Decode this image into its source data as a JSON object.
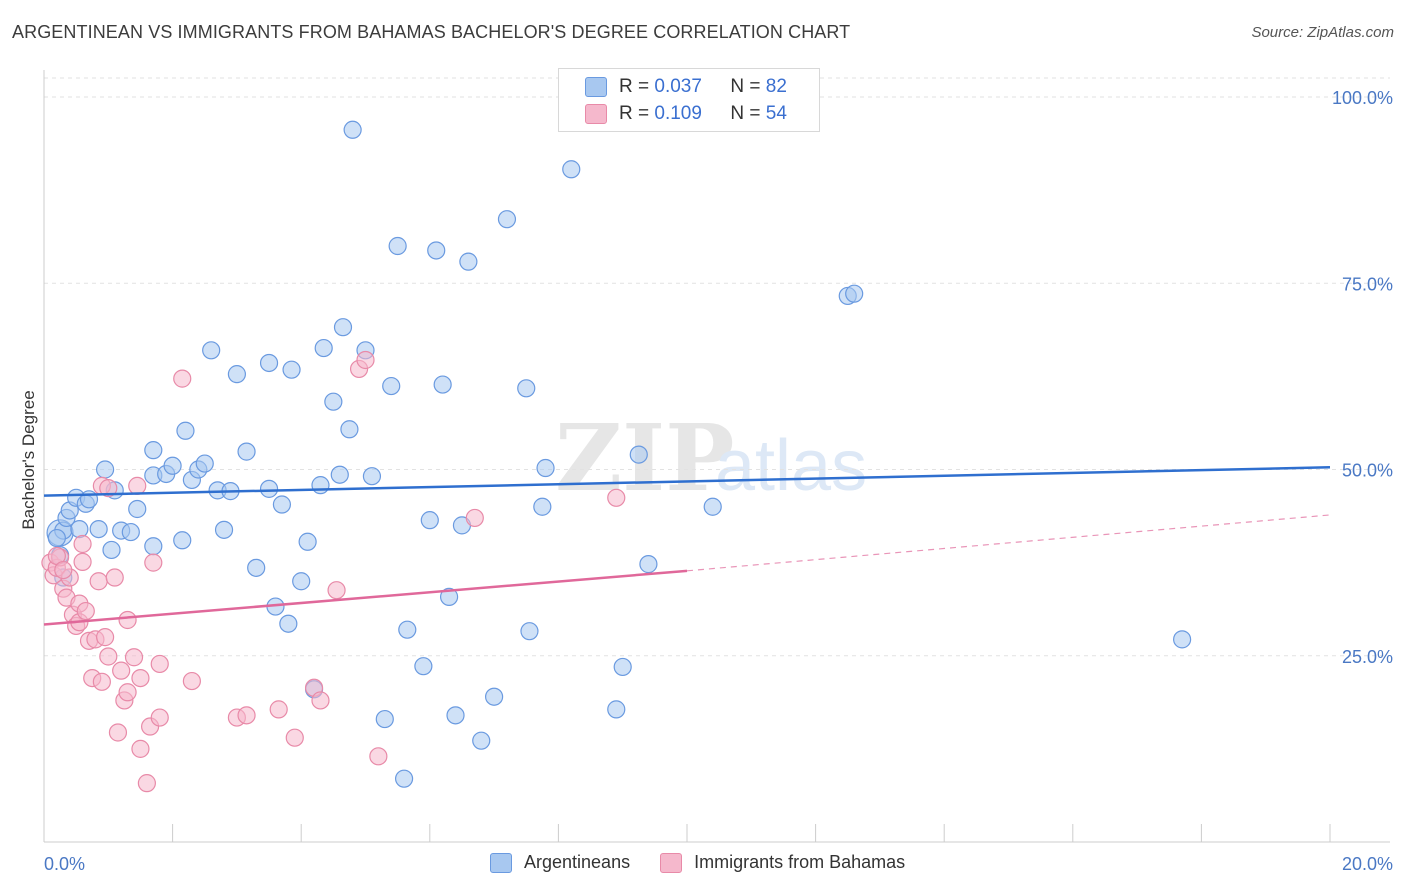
{
  "title": "ARGENTINEAN VS IMMIGRANTS FROM BAHAMAS BACHELOR'S DEGREE CORRELATION CHART",
  "source": "Source: ZipAtlas.com",
  "watermark": "ZIPatlas",
  "legend": {
    "rows": [
      {
        "r_label": "R =",
        "r_value": "0.037",
        "n_label": "N =",
        "n_value": "82",
        "color": "#a8c8f0",
        "edge": "#6a9ae0"
      },
      {
        "r_label": "R =",
        "r_value": "0.109",
        "n_label": "N =",
        "n_value": "54",
        "color": "#f5b8cc",
        "edge": "#e88aa8"
      }
    ]
  },
  "bottom_legend": [
    {
      "label": "Argentineans",
      "color": "#a8c8f0",
      "edge": "#6a9ae0"
    },
    {
      "label": "Immigrants from Bahamas",
      "color": "#f5b8cc",
      "edge": "#e88aa8"
    }
  ],
  "chart_data": {
    "type": "scatter",
    "title": "ARGENTINEAN VS IMMIGRANTS FROM BAHAMAS BACHELOR'S DEGREE CORRELATION CHART",
    "xlabel": "",
    "ylabel": "Bachelor's Degree",
    "xlim": [
      0,
      20
    ],
    "ylim": [
      0,
      102
    ],
    "x_tick_labels": [
      "0.0%",
      "20.0%"
    ],
    "y_ticks": [
      25,
      50,
      75,
      100
    ],
    "y_tick_labels": [
      "25.0%",
      "50.0%",
      "75.0%",
      "100.0%"
    ],
    "grid": true,
    "series": [
      {
        "name": "Argentineans",
        "color": "#6a9ae0",
        "fill": "#a8c8f0",
        "trend": {
          "x": [
            0,
            20
          ],
          "y": [
            46.5,
            50.3
          ],
          "color": "#2f6fcf"
        },
        "points": [
          [
            0.25,
            41.5
          ],
          [
            0.3,
            41.8
          ],
          [
            0.35,
            43.5
          ],
          [
            0.4,
            44.5
          ],
          [
            0.5,
            46.2
          ],
          [
            0.55,
            42
          ],
          [
            0.65,
            45.4
          ],
          [
            0.7,
            46
          ],
          [
            0.85,
            42
          ],
          [
            0.95,
            50
          ],
          [
            1.05,
            39.2
          ],
          [
            1.1,
            47.2
          ],
          [
            1.2,
            41.8
          ],
          [
            1.35,
            41.6
          ],
          [
            1.45,
            44.7
          ],
          [
            1.7,
            39.7
          ],
          [
            1.7,
            52.6
          ],
          [
            1.7,
            49.2
          ],
          [
            1.9,
            49.4
          ],
          [
            2.0,
            50.5
          ],
          [
            2.15,
            40.5
          ],
          [
            2.2,
            55.2
          ],
          [
            2.3,
            48.6
          ],
          [
            2.4,
            50
          ],
          [
            2.5,
            50.8
          ],
          [
            2.6,
            66
          ],
          [
            2.7,
            47.2
          ],
          [
            2.8,
            41.9
          ],
          [
            2.9,
            47.1
          ],
          [
            3.0,
            62.8
          ],
          [
            3.15,
            52.4
          ],
          [
            3.3,
            36.8
          ],
          [
            3.5,
            64.3
          ],
          [
            3.5,
            47.4
          ],
          [
            3.6,
            31.6
          ],
          [
            3.7,
            45.3
          ],
          [
            3.8,
            29.3
          ],
          [
            3.85,
            63.4
          ],
          [
            4.0,
            35
          ],
          [
            4.1,
            40.3
          ],
          [
            4.2,
            20.5
          ],
          [
            4.3,
            47.9
          ],
          [
            4.35,
            66.3
          ],
          [
            4.5,
            59.1
          ],
          [
            4.6,
            49.3
          ],
          [
            4.65,
            69.1
          ],
          [
            4.75,
            55.4
          ],
          [
            4.8,
            95.6
          ],
          [
            5.0,
            66
          ],
          [
            5.1,
            49.1
          ],
          [
            5.3,
            16.5
          ],
          [
            5.4,
            61.2
          ],
          [
            5.5,
            80
          ],
          [
            5.6,
            8.5
          ],
          [
            5.65,
            28.5
          ],
          [
            5.9,
            23.6
          ],
          [
            6.0,
            43.2
          ],
          [
            6.1,
            79.4
          ],
          [
            6.2,
            61.4
          ],
          [
            6.3,
            32.9
          ],
          [
            6.4,
            17
          ],
          [
            6.5,
            42.5
          ],
          [
            6.6,
            77.9
          ],
          [
            6.8,
            13.6
          ],
          [
            7.0,
            19.5
          ],
          [
            7.2,
            83.6
          ],
          [
            7.5,
            60.9
          ],
          [
            7.55,
            28.3
          ],
          [
            7.8,
            50.2
          ],
          [
            7.75,
            45
          ],
          [
            8.2,
            90.3
          ],
          [
            8.9,
            17.8
          ],
          [
            9.0,
            23.5
          ],
          [
            9.25,
            52
          ],
          [
            9.4,
            37.3
          ],
          [
            10.4,
            45
          ],
          [
            12.5,
            73.3
          ],
          [
            12.6,
            73.6
          ],
          [
            17.7,
            27.2
          ],
          [
            0.3,
            35.5
          ],
          [
            0.2,
            40.8
          ],
          [
            0.25,
            38.5
          ]
        ]
      },
      {
        "name": "Immigrants from Bahamas",
        "color": "#e88aa8",
        "fill": "#f5b8cc",
        "trend": {
          "x": [
            0,
            10
          ],
          "y": [
            29.2,
            36.4
          ],
          "color": "#e0689a",
          "dashed_to": [
            20,
            43.9
          ]
        },
        "points": [
          [
            0.1,
            37.5
          ],
          [
            0.15,
            35.8
          ],
          [
            0.2,
            36.8
          ],
          [
            0.25,
            38.2
          ],
          [
            0.3,
            34
          ],
          [
            0.35,
            32.8
          ],
          [
            0.4,
            35.5
          ],
          [
            0.45,
            30.5
          ],
          [
            0.5,
            29
          ],
          [
            0.55,
            29.5
          ],
          [
            0.55,
            32
          ],
          [
            0.6,
            40
          ],
          [
            0.65,
            31
          ],
          [
            0.6,
            37.6
          ],
          [
            0.7,
            27
          ],
          [
            0.75,
            22
          ],
          [
            0.8,
            27.2
          ],
          [
            0.85,
            35
          ],
          [
            0.9,
            21.5
          ],
          [
            0.9,
            47.8
          ],
          [
            0.95,
            27.5
          ],
          [
            1.0,
            24.9
          ],
          [
            1.0,
            47.5
          ],
          [
            1.1,
            35.5
          ],
          [
            1.15,
            14.7
          ],
          [
            1.2,
            23
          ],
          [
            1.25,
            19
          ],
          [
            1.3,
            20.1
          ],
          [
            1.3,
            29.8
          ],
          [
            1.4,
            24.8
          ],
          [
            1.45,
            47.8
          ],
          [
            1.5,
            12.5
          ],
          [
            1.5,
            22
          ],
          [
            1.6,
            7.9
          ],
          [
            1.65,
            15.5
          ],
          [
            1.7,
            37.5
          ],
          [
            1.8,
            16.7
          ],
          [
            1.8,
            23.9
          ],
          [
            2.15,
            62.2
          ],
          [
            2.3,
            21.6
          ],
          [
            3.0,
            16.7
          ],
          [
            3.15,
            17
          ],
          [
            3.65,
            17.8
          ],
          [
            3.9,
            14
          ],
          [
            4.2,
            20.7
          ],
          [
            4.3,
            19
          ],
          [
            4.55,
            33.8
          ],
          [
            4.9,
            63.5
          ],
          [
            5.0,
            64.7
          ],
          [
            5.2,
            11.5
          ],
          [
            6.7,
            43.5
          ],
          [
            8.9,
            46.2
          ],
          [
            0.2,
            38.4
          ],
          [
            0.3,
            36.5
          ]
        ]
      }
    ]
  }
}
